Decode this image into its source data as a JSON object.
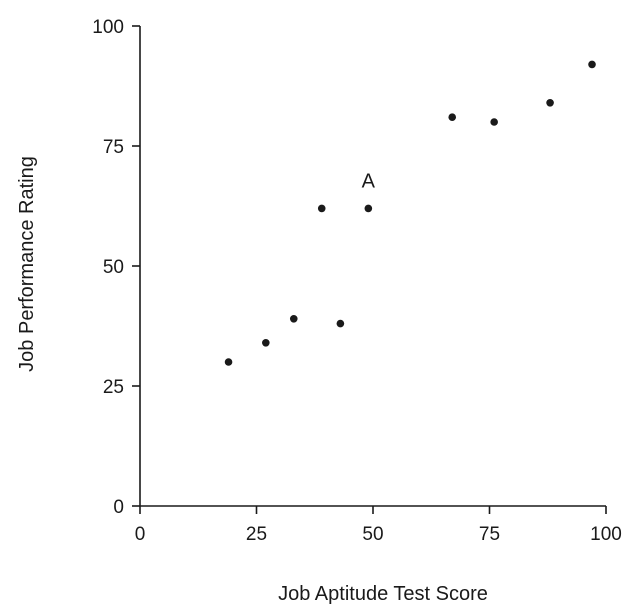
{
  "chart_data": {
    "type": "scatter",
    "title": "",
    "xlabel": "Job Aptitude Test Score",
    "ylabel": "Job Performance Rating",
    "xlim": [
      0,
      100
    ],
    "ylim": [
      0,
      100
    ],
    "x_ticks": [
      "0",
      "25",
      "50",
      "75",
      "100"
    ],
    "y_ticks": [
      "0",
      "25",
      "50",
      "75",
      "100"
    ],
    "grid": false,
    "legend": "none",
    "point_color": "#1a1a1a",
    "series": [
      {
        "x": [
          19,
          27,
          33,
          39,
          43,
          49,
          67,
          76,
          88,
          97
        ],
        "y": [
          30,
          34,
          39,
          62,
          38,
          62,
          81,
          80,
          84,
          92
        ]
      }
    ],
    "annotations": [
      {
        "text": "A",
        "x": 49,
        "y": 62
      }
    ]
  }
}
